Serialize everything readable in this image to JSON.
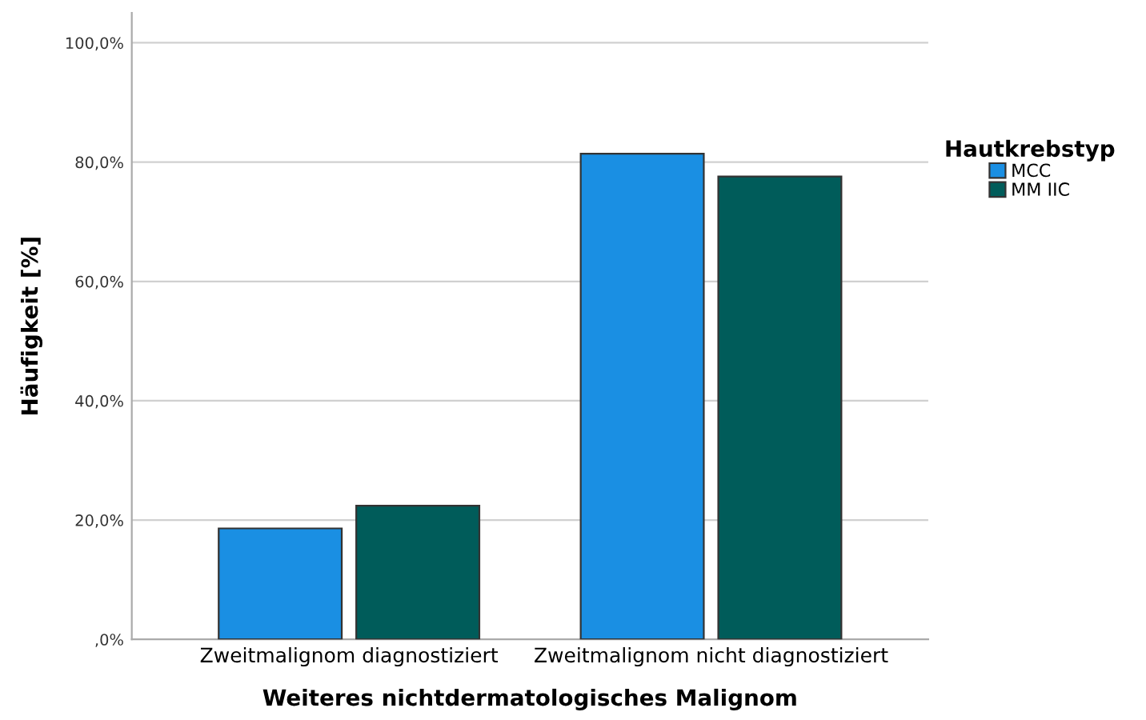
{
  "chart_data": {
    "type": "bar",
    "xlabel": "Weiteres nichtdermatologisches Malignom",
    "ylabel": "Häufigkeit [%]",
    "legend_title": "Hautkrebstyp",
    "categories": [
      "Zweitmalignom diagnostiziert",
      "Zweitmalignom nicht diagnostiziert"
    ],
    "series": [
      {
        "name": "MCC",
        "color": "#1a8fe3",
        "values": [
          18.6,
          81.4
        ]
      },
      {
        "name": "MM IIC",
        "color": "#005c5a",
        "values": [
          22.4,
          77.6
        ]
      }
    ],
    "ylim": [
      0,
      105
    ],
    "yticks": [
      {
        "value": 0,
        "label": ",0%"
      },
      {
        "value": 20,
        "label": "20,0%"
      },
      {
        "value": 40,
        "label": "40,0%"
      },
      {
        "value": 60,
        "label": "60,0%"
      },
      {
        "value": 80,
        "label": "80,0%"
      },
      {
        "value": 100,
        "label": "100,0%"
      }
    ],
    "grid": "y",
    "legend": "right"
  }
}
